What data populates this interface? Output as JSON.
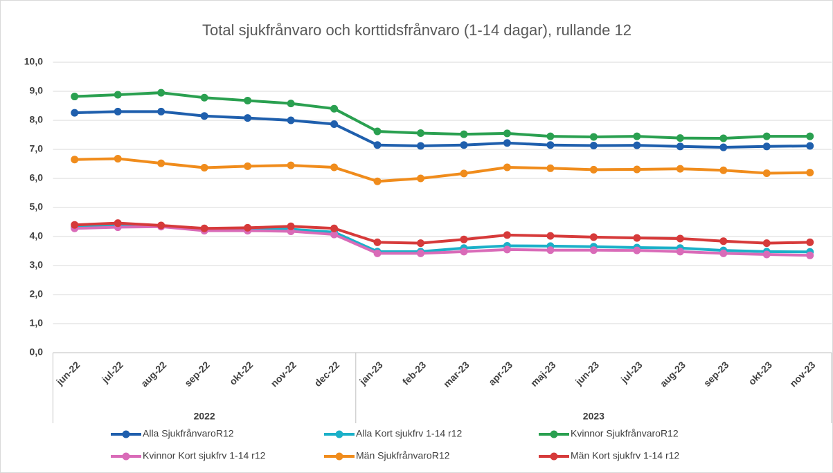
{
  "chart_data": {
    "type": "line",
    "title": "Total sjukfrånvaro och korttidsfrånvaro (1-14 dagar), rullande 12",
    "categories": [
      "jun-22",
      "jul-22",
      "aug-22",
      "sep-22",
      "okt-22",
      "nov-22",
      "dec-22",
      "jan-23",
      "feb-23",
      "mar-23",
      "apr-23",
      "maj-23",
      "jun-23",
      "jul-23",
      "aug-23",
      "sep-23",
      "okt-23",
      "nov-23"
    ],
    "groups": [
      {
        "label": "2022",
        "count": 7
      },
      {
        "label": "2023",
        "count": 11
      }
    ],
    "series": [
      {
        "name": "Alla SjukfrånvaroR12",
        "color": "#1f5fad",
        "values": [
          8.26,
          8.3,
          8.3,
          8.15,
          8.08,
          8.0,
          7.87,
          7.15,
          7.12,
          7.15,
          7.22,
          7.15,
          7.13,
          7.14,
          7.1,
          7.07,
          7.1,
          7.12
        ]
      },
      {
        "name": "Alla Kort sjukfrv 1-14 r12",
        "color": "#1bb0c8",
        "values": [
          4.32,
          4.38,
          4.36,
          4.25,
          4.25,
          4.25,
          4.15,
          3.48,
          3.48,
          3.6,
          3.68,
          3.67,
          3.65,
          3.62,
          3.6,
          3.52,
          3.48,
          3.47
        ]
      },
      {
        "name": "Kvinnor SjukfrånvaroR12",
        "color": "#2aa050",
        "values": [
          8.82,
          8.88,
          8.95,
          8.78,
          8.68,
          8.58,
          8.4,
          7.62,
          7.56,
          7.52,
          7.55,
          7.45,
          7.43,
          7.45,
          7.39,
          7.38,
          7.45,
          7.45
        ]
      },
      {
        "name": "Kvinnor Kort sjukfrv 1-14 r12",
        "color": "#d96bb8",
        "values": [
          4.28,
          4.32,
          4.34,
          4.2,
          4.2,
          4.18,
          4.07,
          3.42,
          3.42,
          3.48,
          3.55,
          3.53,
          3.53,
          3.52,
          3.48,
          3.42,
          3.38,
          3.35
        ]
      },
      {
        "name": "Män SjukfrånvaroR12",
        "color": "#f08c1c",
        "values": [
          6.65,
          6.68,
          6.52,
          6.37,
          6.42,
          6.45,
          6.38,
          5.9,
          6.0,
          6.17,
          6.38,
          6.35,
          6.3,
          6.31,
          6.33,
          6.28,
          6.18,
          6.2
        ]
      },
      {
        "name": "Män Kort sjukfrv 1-14 r12",
        "color": "#d63a3a",
        "values": [
          4.4,
          4.46,
          4.38,
          4.28,
          4.3,
          4.35,
          4.28,
          3.8,
          3.77,
          3.9,
          4.05,
          4.02,
          3.98,
          3.95,
          3.93,
          3.84,
          3.77,
          3.8
        ]
      }
    ],
    "ylim": [
      0,
      10
    ],
    "yticks": [
      {
        "value": 0,
        "label": "0,0"
      },
      {
        "value": 1,
        "label": "1,0"
      },
      {
        "value": 2,
        "label": "2,0"
      },
      {
        "value": 3,
        "label": "3,0"
      },
      {
        "value": 4,
        "label": "4,0"
      },
      {
        "value": 5,
        "label": "5,0"
      },
      {
        "value": 6,
        "label": "6,0"
      },
      {
        "value": 7,
        "label": "7,0"
      },
      {
        "value": 8,
        "label": "8,0"
      },
      {
        "value": 9,
        "label": "9,0"
      },
      {
        "value": 10,
        "label": "10,0"
      }
    ],
    "grid": true
  }
}
